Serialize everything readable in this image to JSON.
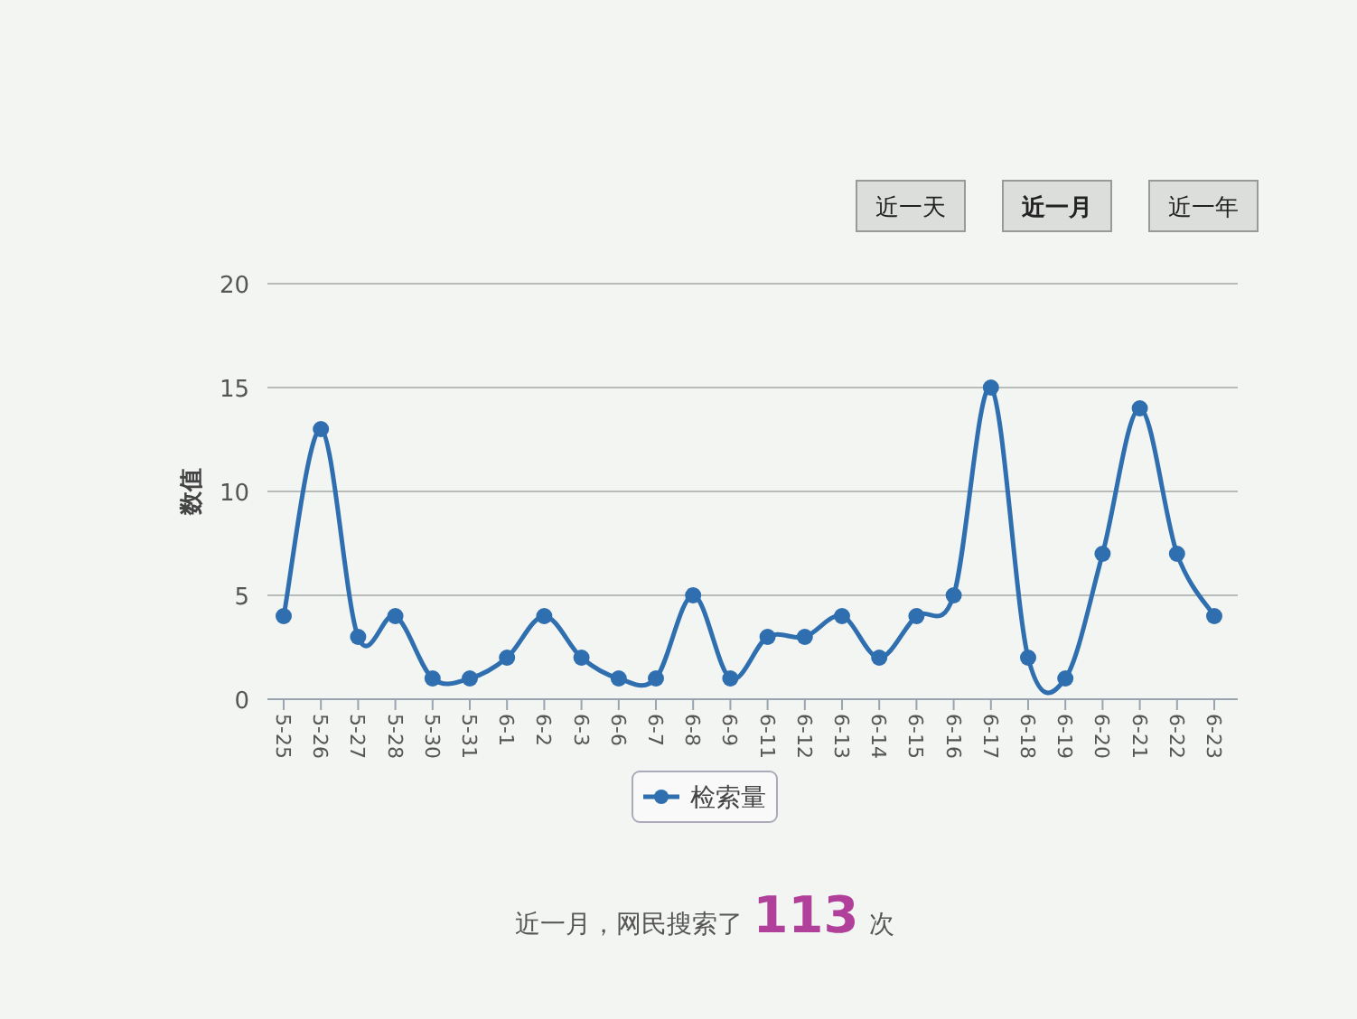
{
  "chart_data": {
    "type": "line",
    "ylabel": "数值",
    "categories": [
      "5-25",
      "5-26",
      "5-27",
      "5-28",
      "5-30",
      "5-31",
      "6-1",
      "6-2",
      "6-3",
      "6-6",
      "6-7",
      "6-8",
      "6-9",
      "6-11",
      "6-12",
      "6-13",
      "6-14",
      "6-15",
      "6-16",
      "6-17",
      "6-18",
      "6-19",
      "6-20",
      "6-21",
      "6-22",
      "6-23"
    ],
    "series": [
      {
        "name": "检索量",
        "color": "#2f6fb0",
        "values": [
          4,
          13,
          3,
          4,
          1,
          1,
          2,
          4,
          2,
          1,
          1,
          5,
          1,
          3,
          3,
          4,
          2,
          4,
          5,
          15,
          2,
          1,
          7,
          14,
          7,
          4
        ]
      }
    ],
    "ylim": [
      0,
      20
    ],
    "yticks": [
      0,
      5,
      10,
      15,
      20
    ],
    "grid": "y",
    "legend": "bottom",
    "marker": "circle",
    "annotations": [
      "近一天",
      "近一月",
      "近一年",
      "近一月，网民搜索了",
      "113",
      "次"
    ]
  }
}
